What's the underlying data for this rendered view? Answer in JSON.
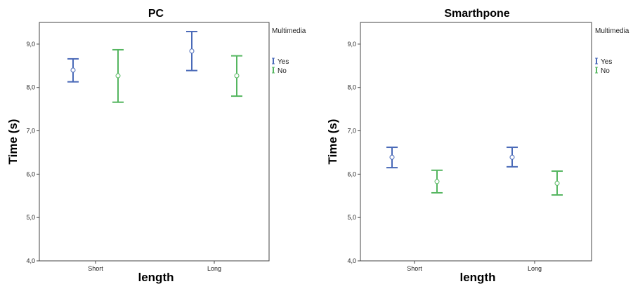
{
  "chart_data": [
    {
      "type": "errorbar",
      "title": "PC",
      "xlabel": "length",
      "ylabel": "Time (s)",
      "categories": [
        "Short",
        "Long"
      ],
      "ylim": [
        4.0,
        9.5
      ],
      "yticks": [
        "4,0",
        "5,0",
        "6,0",
        "7,0",
        "8,0",
        "9,0"
      ],
      "legend": {
        "title": "Multimedia",
        "position": "right"
      },
      "series": [
        {
          "name": "Yes",
          "color": "#4a6ab8",
          "mean": [
            8.4,
            8.84
          ],
          "lower": [
            8.13,
            8.39
          ],
          "upper": [
            8.66,
            9.29
          ]
        },
        {
          "name": "No",
          "color": "#55b660",
          "mean": [
            8.27,
            8.27
          ],
          "lower": [
            7.66,
            7.8
          ],
          "upper": [
            8.87,
            8.73
          ]
        }
      ]
    },
    {
      "type": "errorbar",
      "title": "Smarthpone",
      "xlabel": "length",
      "ylabel": "Time (s)",
      "categories": [
        "Short",
        "Long"
      ],
      "ylim": [
        4.0,
        9.5
      ],
      "yticks": [
        "4,0",
        "5,0",
        "6,0",
        "7,0",
        "8,0",
        "9,0"
      ],
      "legend": {
        "title": "Multimedia",
        "position": "right"
      },
      "series": [
        {
          "name": "Yes",
          "color": "#4a6ab8",
          "mean": [
            6.39,
            6.39
          ],
          "lower": [
            6.15,
            6.17
          ],
          "upper": [
            6.62,
            6.62
          ]
        },
        {
          "name": "No",
          "color": "#55b660",
          "mean": [
            5.83,
            5.79
          ],
          "lower": [
            5.57,
            5.52
          ],
          "upper": [
            6.09,
            6.07
          ]
        }
      ]
    }
  ]
}
